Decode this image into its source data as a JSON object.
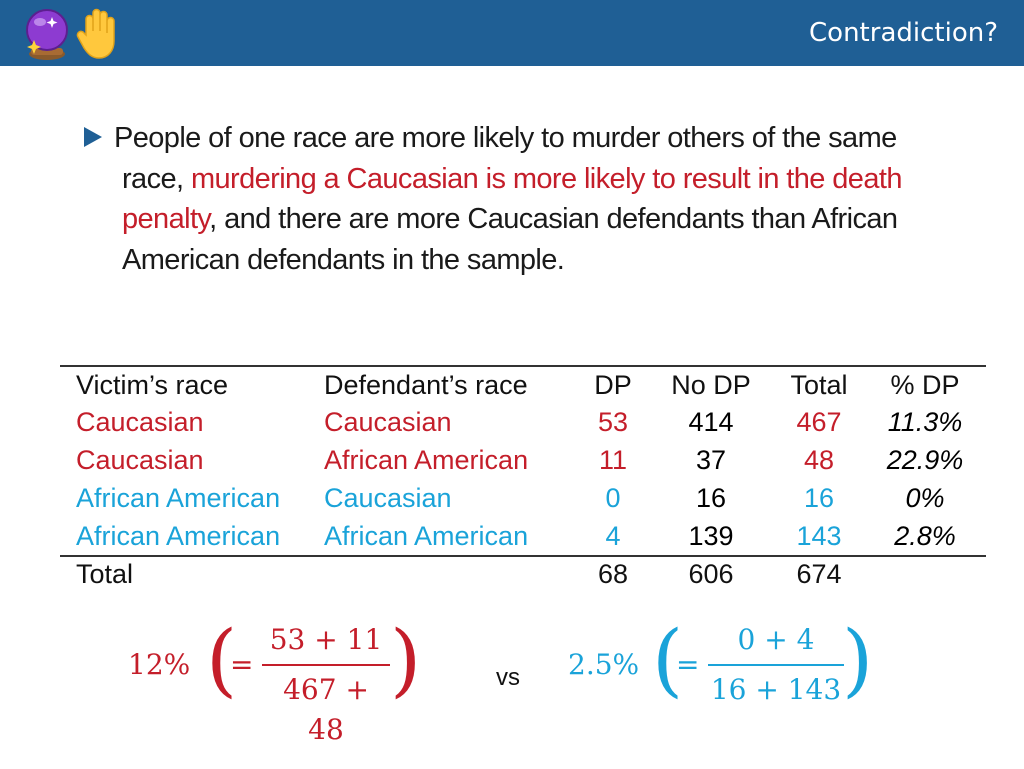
{
  "header": {
    "title": "Contradiction?",
    "icons": [
      "crystal-ball-icon",
      "raised-hand-icon"
    ],
    "background": "#1f5f95"
  },
  "bullet": {
    "part1": "People of one race are more likely to murder others of the same race, ",
    "part2_red": "murdering a Caucasian is more likely to result in the death penalty",
    "part3": ", and there are more Caucasian defendants than African American defendants in the sample."
  },
  "table": {
    "headers": [
      "Victim’s race",
      "Defendant’s race",
      "DP",
      "No DP",
      "Total",
      "% DP"
    ],
    "rows": [
      {
        "victim": "Caucasian",
        "defendant": "Caucasian",
        "dp": "53",
        "nodp": "414",
        "total": "467",
        "pct": "11.3%",
        "group": "red"
      },
      {
        "victim": "Caucasian",
        "defendant": "African American",
        "dp": "11",
        "nodp": "37",
        "total": "48",
        "pct": "22.9%",
        "group": "red"
      },
      {
        "victim": "African American",
        "defendant": "Caucasian",
        "dp": "0",
        "nodp": "16",
        "total": "16",
        "pct": "0%",
        "group": "blue"
      },
      {
        "victim": "African American",
        "defendant": "African American",
        "dp": "4",
        "nodp": "139",
        "total": "143",
        "pct": "2.8%",
        "group": "blue"
      }
    ],
    "footer": {
      "label": "Total",
      "dp": "68",
      "nodp": "606",
      "total": "674"
    }
  },
  "formulas": {
    "left": {
      "value": "12%",
      "numerator": "53 + 11",
      "denominator": "467 + 48",
      "color": "#c41e2a"
    },
    "vs": "vs",
    "right": {
      "value": "2.5%",
      "numerator": "0 + 4",
      "denominator": "16 + 143",
      "color": "#1aa3d9"
    }
  },
  "colors": {
    "red": "#c41e2a",
    "blue": "#1aa3d9",
    "dark": "#111111"
  }
}
